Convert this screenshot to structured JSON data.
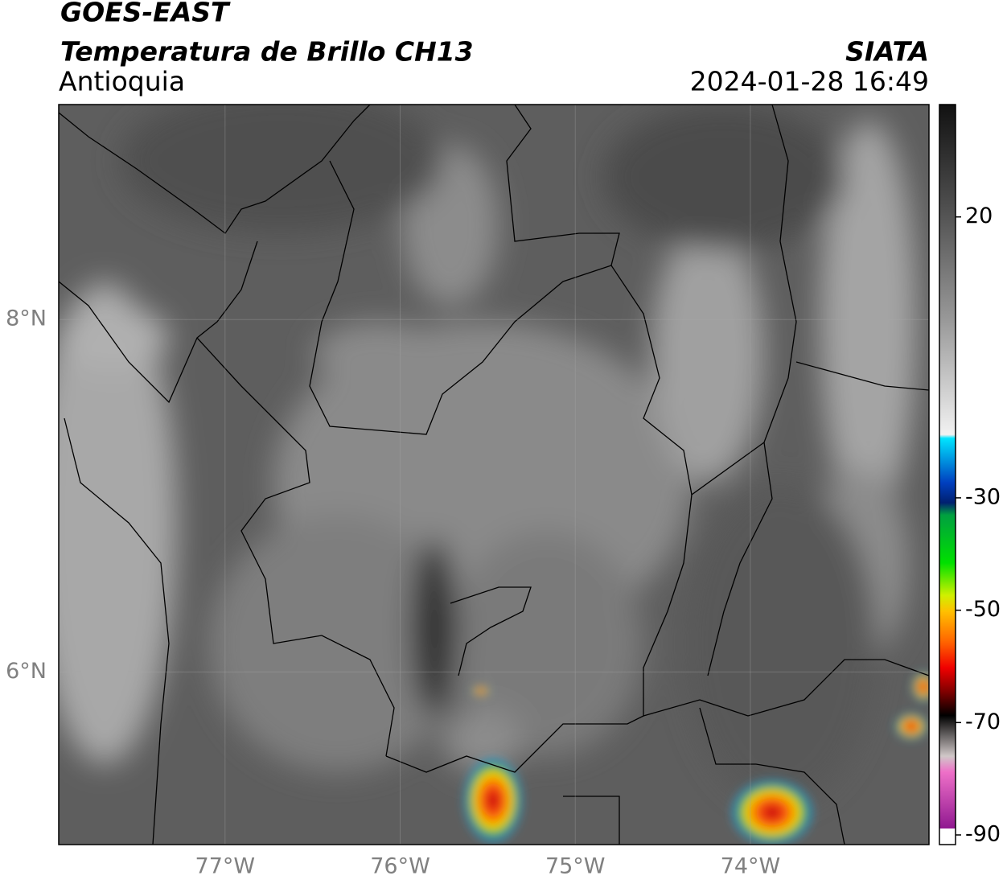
{
  "header": {
    "satellite": "GOES-EAST",
    "product": "Temperatura de Brillo CH13",
    "region": "Antioquia",
    "agency": "SIATA",
    "timestamp": "2024-01-28 16:49"
  },
  "map": {
    "xlim": [
      -77.95,
      -72.98
    ],
    "ylim": [
      5.02,
      9.22
    ],
    "xticks": [
      {
        "value": -77,
        "label": "77°W"
      },
      {
        "value": -76,
        "label": "76°W"
      },
      {
        "value": -75,
        "label": "75°W"
      },
      {
        "value": -74,
        "label": "74°W"
      }
    ],
    "yticks": [
      {
        "value": 8,
        "label": "8°N"
      },
      {
        "value": 6,
        "label": "6°N"
      }
    ],
    "grid": true
  },
  "colorbar": {
    "clim": [
      -90,
      40
    ],
    "ticks": [
      20,
      -30,
      -50,
      -70,
      -90
    ]
  }
}
